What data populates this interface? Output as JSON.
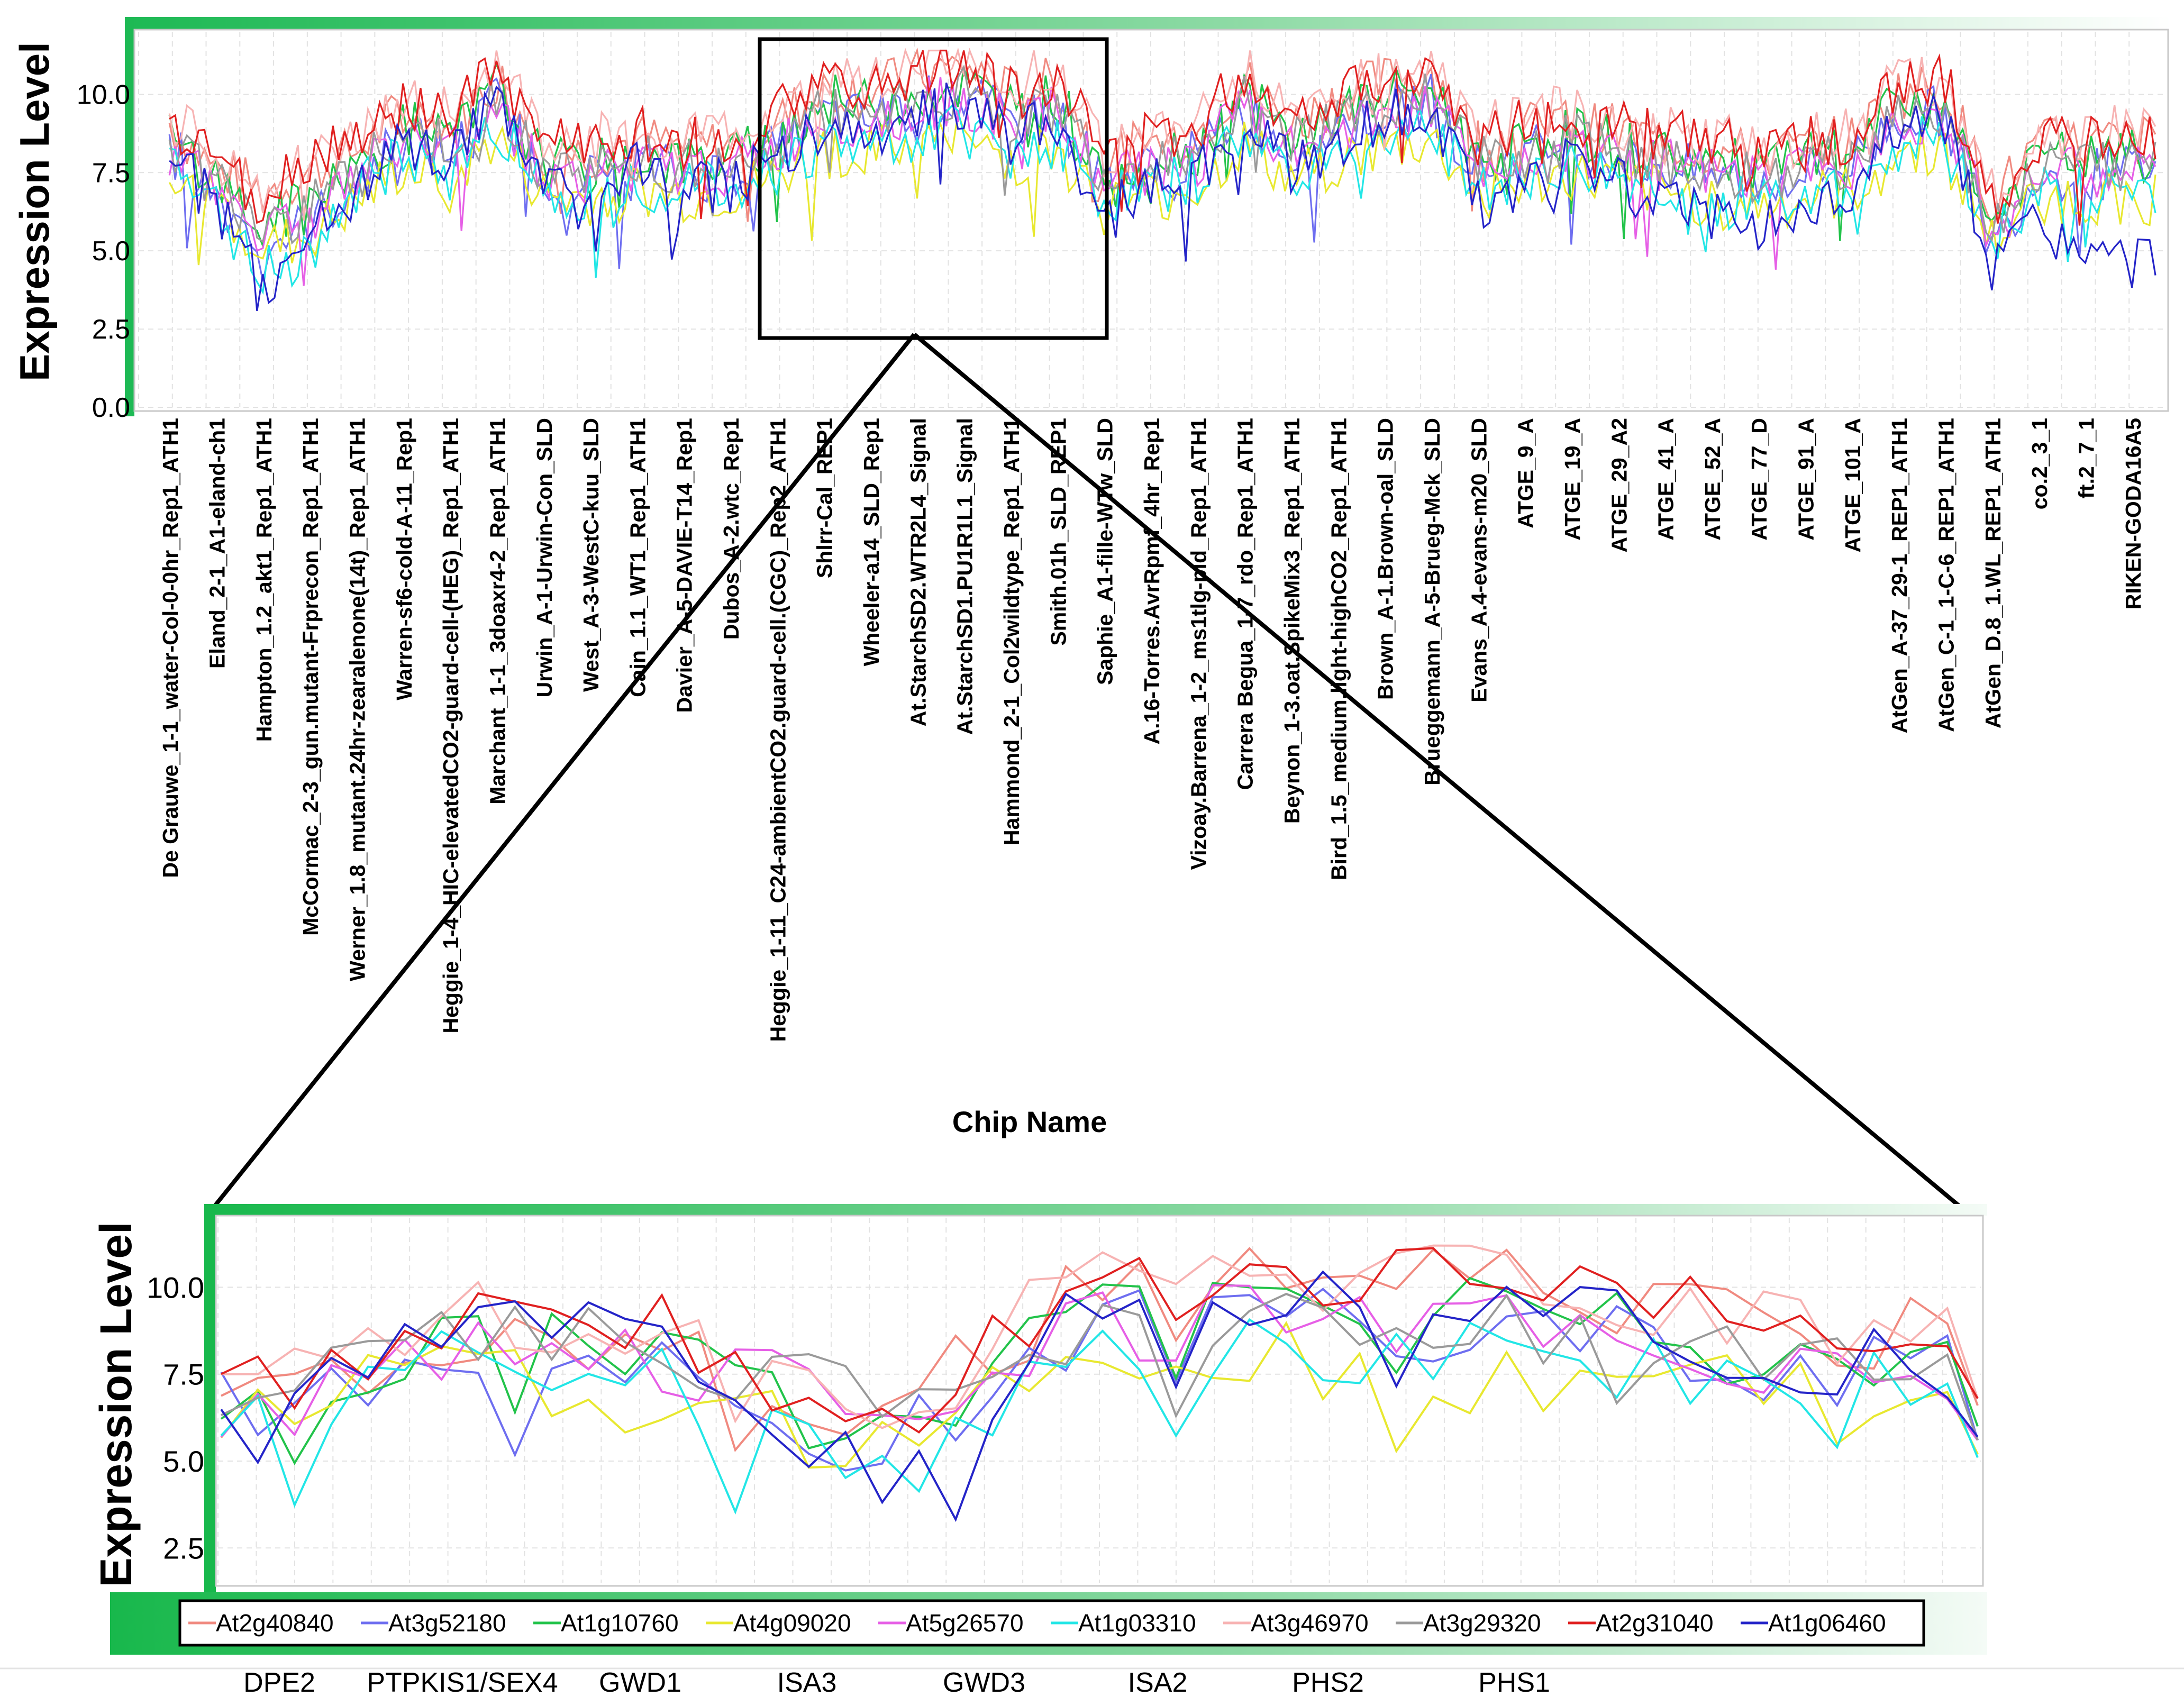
{
  "chart_data": [
    {
      "type": "line",
      "ylabel": "Expression Level",
      "xlabel": "Chip Name",
      "ylim": [
        0,
        12
      ],
      "yticks": [
        "0.0",
        "2.5",
        "5.0",
        "7.5",
        "10.0"
      ],
      "grid": true,
      "categories": [
        "De Grauwe_1-1_water-Col-0-0hr_Rep1_ATH1",
        "Eland_2-1_A1-eland-ch1",
        "Hampton_1.2_akt1_Rep1_ATH1",
        "McCormac_2-3_gun.mutant-Frprecon_Rep1_ATH1",
        "Werner_1.8_mutant.24hr-zearalenone(14t)_Rep1_ATH1",
        "Warren-sf6-cold-A-11_Rep1",
        "Heggie_1-4_HIC-elevatedCO2-guard-cell-(HEG)_Rep1_ATH1",
        "Marchant_1-1_3doaxr4-2_Rep1_ATH1",
        "Urwin_A-1-Urwin-Con_SLD",
        "West_A-3-WestC-kuu_SLD",
        "Cain_1.1_WT1_Rep1_ATH1",
        "Davier_A-5-DAVIE-T14_Rep1",
        "Dubos_A-2.wtc_Rep1",
        "Heggie_1-11_C24-ambientCO2.guard-cell.(CGC)_Rep2_ATH1",
        "Shlrr-Cal_REP1",
        "Wheeler-a14_SLD_Rep1",
        "At.StarchSD2.WTR2L4_Signal",
        "At.StarchSD1.PU1R1L1_Signal",
        "Hammond_2-1_Col2wildtype_Rep1_ATH1",
        "Smith.01h_SLD_REP1",
        "Saphie_A1-fille-WTw_SLD",
        "A.16-Torres.AvrRpmf_4hr_Rep1",
        "Vizoay.Barrena_1-2_ms1tlg-pld_Rep1_ATH1",
        "Carrera Begua_1-7_rdo_Rep1_ATH1",
        "Beynon_1-3.oat.SpikeMix3_Rep1_ATH1",
        "Bird_1.5_medium.light-highCO2_Rep1_ATH1",
        "Brown_A-1.Brown-oal_SLD",
        "Brueggemann_A-5-Brueg-Mck_SLD",
        "Evans_A.4-evans-m20_SLD",
        "ATGE_9_A",
        "ATGE_19_A",
        "ATGE_29_A2",
        "ATGE_41_A",
        "ATGE_52_A",
        "ATGE_77_D",
        "ATGE_91_A",
        "ATGE_101_A",
        "AtGen_A-37_29-1_REP1_ATH1",
        "AtGen_C-1_1-C-6_REP1_ATH1",
        "AtGen_D.8_1.WL_REP1_ATH1",
        "co.2_3_1",
        "ft.2_7_1",
        "RIKEN-GODA16A5"
      ],
      "series": [
        {
          "name": "At2g40840",
          "values": [
            9.1,
            7.6,
            6.9,
            7.5,
            8.2,
            9.5,
            8.9,
            10.6,
            8.3,
            8.1,
            8.6,
            8.3,
            8.4,
            9.1,
            10.2,
            10.1,
            10.6,
            10.9,
            10.0,
            10.4,
            7.9,
            8.4,
            8.8,
            10.5,
            9.0,
            9.9,
            10.4,
            10.8,
            8.5,
            8.9,
            9.1,
            8.8,
            8.5,
            8.2,
            8.0,
            8.3,
            8.5,
            10.1,
            10.2,
            6.6,
            8.4,
            8.4,
            8.5
          ]
        },
        {
          "name": "At3g52180",
          "values": [
            8.3,
            6.8,
            5.2,
            5.8,
            7.2,
            8.6,
            8.0,
            9.8,
            7.4,
            7.3,
            7.8,
            7.4,
            7.5,
            8.2,
            9.3,
            9.2,
            9.7,
            9.9,
            9.1,
            9.5,
            7.2,
            7.6,
            8.0,
            9.6,
            8.1,
            9.0,
            9.5,
            9.8,
            7.6,
            8.1,
            8.4,
            8.0,
            7.7,
            7.4,
            7.2,
            7.5,
            7.8,
            9.3,
            9.4,
            5.1,
            7.6,
            7.4,
            7.5
          ]
        },
        {
          "name": "At1g10760",
          "values": [
            8.6,
            7.4,
            5.6,
            6.8,
            7.6,
            9.0,
            8.4,
            10.2,
            7.8,
            7.6,
            8.1,
            7.8,
            7.9,
            8.6,
            9.8,
            9.6,
            10.1,
            10.3,
            9.5,
            9.9,
            7.5,
            8.0,
            8.3,
            10.0,
            8.5,
            9.4,
            9.9,
            10.2,
            8.0,
            8.5,
            8.8,
            8.4,
            8.1,
            7.8,
            7.6,
            7.9,
            8.1,
            9.7,
            9.8,
            5.8,
            8.0,
            7.9,
            8.0
          ]
        },
        {
          "name": "At4g09020",
          "values": [
            7.1,
            6.6,
            5.0,
            5.4,
            6.5,
            7.6,
            7.1,
            8.6,
            6.7,
            6.6,
            6.9,
            6.7,
            6.8,
            7.3,
            8.2,
            8.1,
            8.4,
            8.6,
            7.9,
            8.2,
            6.4,
            6.7,
            7.0,
            8.4,
            7.2,
            7.9,
            8.2,
            8.5,
            6.8,
            7.1,
            7.4,
            7.1,
            6.8,
            6.6,
            6.4,
            6.6,
            6.8,
            8.1,
            8.2,
            5.2,
            6.7,
            6.6,
            6.7
          ]
        },
        {
          "name": "At5g26570",
          "values": [
            7.9,
            7.0,
            5.7,
            6.3,
            7.3,
            8.6,
            8.1,
            9.7,
            7.5,
            7.3,
            7.7,
            7.5,
            7.6,
            8.2,
            9.3,
            9.1,
            9.6,
            9.8,
            9.0,
            9.4,
            7.2,
            7.6,
            7.9,
            9.5,
            8.1,
            8.9,
            9.4,
            9.7,
            7.6,
            8.0,
            8.3,
            8.0,
            7.7,
            7.4,
            7.2,
            7.5,
            7.7,
            9.2,
            9.3,
            5.6,
            7.5,
            7.4,
            7.6
          ]
        },
        {
          "name": "At1g03310",
          "values": [
            7.6,
            6.4,
            4.2,
            5.1,
            6.8,
            8.0,
            7.5,
            9.0,
            7.0,
            6.8,
            7.2,
            7.0,
            7.1,
            7.6,
            8.4,
            8.3,
            8.7,
            8.9,
            8.2,
            8.5,
            6.6,
            7.0,
            7.3,
            8.7,
            7.5,
            8.2,
            8.6,
            8.8,
            7.0,
            7.3,
            7.6,
            7.3,
            7.0,
            6.7,
            6.5,
            6.8,
            7.0,
            8.4,
            8.5,
            5.4,
            6.9,
            6.8,
            6.9
          ]
        },
        {
          "name": "At3g46970",
          "values": [
            9.3,
            8.0,
            7.0,
            7.8,
            8.5,
            9.9,
            9.3,
            11.0,
            8.6,
            8.4,
            8.9,
            8.6,
            8.7,
            9.4,
            10.6,
            10.5,
            11.0,
            11.3,
            10.3,
            10.8,
            8.2,
            8.7,
            9.1,
            10.9,
            9.3,
            10.2,
            10.8,
            11.1,
            8.8,
            9.2,
            9.5,
            9.1,
            8.8,
            8.5,
            8.3,
            8.6,
            8.8,
            10.4,
            10.5,
            6.8,
            8.7,
            8.7,
            8.8
          ]
        },
        {
          "name": "At3g29320",
          "values": [
            8.4,
            7.2,
            5.5,
            6.4,
            7.4,
            8.8,
            8.2,
            9.9,
            7.6,
            7.4,
            7.9,
            7.6,
            7.7,
            8.4,
            9.5,
            9.3,
            9.8,
            10.0,
            9.2,
            9.6,
            7.3,
            7.8,
            8.1,
            9.7,
            8.3,
            9.1,
            9.6,
            9.9,
            7.8,
            8.2,
            8.5,
            8.2,
            7.9,
            7.6,
            7.4,
            7.7,
            7.9,
            9.4,
            9.5,
            5.7,
            7.7,
            7.6,
            7.8
          ]
        },
        {
          "name": "At2g31040",
          "values": [
            9.0,
            8.1,
            6.6,
            7.9,
            8.6,
            9.7,
            9.1,
            10.8,
            8.5,
            8.3,
            8.8,
            8.5,
            8.6,
            9.3,
            10.4,
            10.2,
            10.8,
            11.0,
            10.1,
            10.6,
            8.1,
            8.6,
            8.9,
            10.7,
            9.2,
            10.1,
            10.6,
            10.9,
            8.6,
            9.0,
            9.3,
            9.0,
            8.7,
            8.4,
            8.2,
            8.5,
            8.7,
            10.3,
            10.4,
            6.4,
            8.5,
            8.5,
            8.6
          ]
        },
        {
          "name": "At1g06460",
          "values": [
            8.0,
            6.5,
            3.6,
            5.6,
            7.0,
            8.5,
            7.8,
            9.6,
            7.2,
            6.2,
            7.6,
            7.0,
            7.1,
            7.8,
            8.9,
            8.4,
            9.4,
            9.8,
            8.8,
            9.2,
            6.0,
            7.1,
            7.5,
            9.2,
            7.6,
            8.4,
            9.2,
            9.6,
            6.4,
            7.2,
            7.8,
            7.2,
            6.6,
            6.2,
            5.8,
            6.0,
            6.8,
            9.0,
            9.2,
            4.6,
            5.8,
            4.6,
            4.5
          ]
        }
      ]
    },
    {
      "type": "line",
      "ylabel": "Expression Level",
      "ylim": [
        1.5,
        12
      ],
      "yticks": [
        "2.5",
        "5.0",
        "7.5",
        "10.0"
      ],
      "grid": true,
      "legend_position": "bottom",
      "categories": [
        "DPE2",
        "PTPKIS1/SEX4",
        "GWD1",
        "ISA3",
        "GWD3",
        "ISA2",
        "PHS2",
        "PHS1"
      ],
      "series": [
        {
          "name": "At2g40840",
          "color": "#f08a80",
          "values": [
            6.8,
            8.6,
            8.7,
            6.2,
            10.2,
            10.1,
            10.3,
            8.6
          ]
        },
        {
          "name": "At3g52180",
          "color": "#6e6ef0",
          "values": [
            6.5,
            8.1,
            7.9,
            5.2,
            9.3,
            9.0,
            8.9,
            7.6
          ]
        },
        {
          "name": "At1g10760",
          "color": "#22c34a",
          "values": [
            6.6,
            8.4,
            8.1,
            5.6,
            9.6,
            9.5,
            9.7,
            8.0
          ]
        },
        {
          "name": "At4g09020",
          "color": "#e8e830",
          "values": [
            6.4,
            7.6,
            6.4,
            5.6,
            8.6,
            7.8,
            7.3,
            7.2
          ]
        },
        {
          "name": "At5g26570",
          "color": "#e65fe6",
          "values": [
            6.6,
            8.0,
            8.0,
            6.4,
            8.9,
            9.2,
            9.2,
            7.6
          ]
        },
        {
          "name": "At1g03310",
          "color": "#22e6e6",
          "values": [
            6.0,
            7.9,
            7.2,
            4.6,
            8.2,
            8.2,
            8.2,
            7.1
          ]
        },
        {
          "name": "At3g46970",
          "color": "#f7b3b3",
          "values": [
            7.4,
            9.2,
            8.9,
            6.6,
            10.6,
            10.4,
            10.6,
            8.8
          ]
        },
        {
          "name": "At3g29320",
          "color": "#9a9a9a",
          "values": [
            6.6,
            8.5,
            8.2,
            6.5,
            9.1,
            9.2,
            8.9,
            7.6
          ]
        },
        {
          "name": "At2g31040",
          "color": "#e02020",
          "values": [
            7.0,
            9.1,
            8.9,
            6.2,
            10.0,
            10.3,
            10.2,
            8.8
          ]
        },
        {
          "name": "At1g06460",
          "color": "#2424c8",
          "values": [
            5.4,
            8.4,
            8.7,
            4.0,
            9.8,
            9.7,
            9.6,
            7.7
          ]
        }
      ]
    }
  ]
}
